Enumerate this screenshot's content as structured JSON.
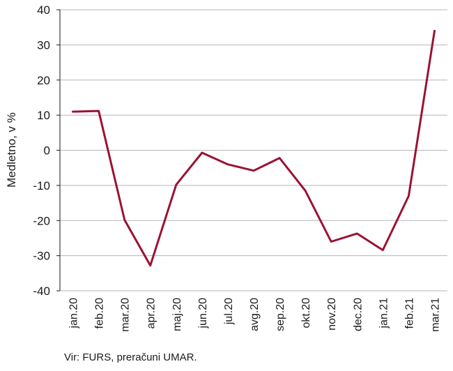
{
  "chart_data": {
    "type": "line",
    "categories": [
      "jan.20",
      "feb.20",
      "mar.20",
      "apr.20",
      "maj.20",
      "jun.20",
      "jul.20",
      "avg.20",
      "sep.20",
      "okt.20",
      "nov.20",
      "dec.20",
      "jan.21",
      "feb.21",
      "mar.21"
    ],
    "series": [
      {
        "values": [
          11.0,
          11.2,
          -19.8,
          -32.8,
          -9.8,
          -0.7,
          -4.0,
          -5.8,
          -2.2,
          -11.5,
          -26.0,
          -23.7,
          -28.4,
          -13.0,
          34.0
        ],
        "color": "#9b1233"
      }
    ],
    "ylabel": "Medletno, v %",
    "xlabel": "",
    "ylim": [
      -40,
      40
    ],
    "yticks": [
      -40,
      -30,
      -20,
      -10,
      0,
      10,
      20,
      30,
      40
    ],
    "grid": true
  },
  "source_note": "Vir: FURS, preračuni UMAR."
}
